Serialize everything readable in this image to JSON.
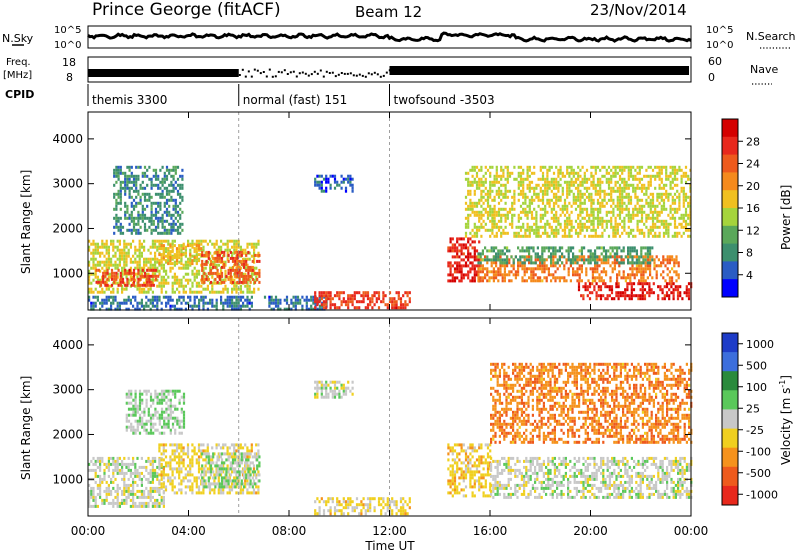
{
  "header": {
    "station": "Prince George (fitACF)",
    "beam": "Beam 12",
    "date": "23/Nov/2014"
  },
  "panels": {
    "nsky": {
      "left_label": "N.Sky",
      "right_label": "N.Search",
      "left_ticks": [
        "10^5",
        "10^0"
      ],
      "right_ticks": [
        "10^5",
        "10^0"
      ],
      "right_legend_style": "dotted"
    },
    "freq": {
      "left_label_1": "Freq.",
      "left_label_2": "[MHz]",
      "right_label": "Nave",
      "left_ticks": [
        "18",
        "8"
      ],
      "right_ticks": [
        "60",
        "0"
      ],
      "right_legend_style": "dotted"
    },
    "cpid": {
      "label": "CPID",
      "segments": [
        {
          "label": "themis 3300",
          "start_hour": 0,
          "end_hour": 6
        },
        {
          "label": "normal (fast) 151",
          "start_hour": 6,
          "end_hour": 12
        },
        {
          "label": "twofsound -3503",
          "start_hour": 12,
          "end_hour": 24
        }
      ]
    }
  },
  "chart_data": [
    {
      "type": "heatmap",
      "name": "power",
      "ylabel": "Slant Range [km]",
      "ylim": [
        180,
        4600
      ],
      "yticks": [
        "1000",
        "2000",
        "3000",
        "4000"
      ],
      "colorbar_label": "Power [dB]",
      "colorbar_ticks": [
        "4",
        "8",
        "12",
        "16",
        "20",
        "24",
        "28"
      ],
      "colorbar_colors": [
        "#0000ff",
        "#2a5cc4",
        "#3c8f6e",
        "#5aa85a",
        "#a5d43c",
        "#f0c020",
        "#f58a1c",
        "#ee5a1c",
        "#e8281c",
        "#d40000"
      ],
      "colorbar_range": [
        0,
        32
      ],
      "bands": [
        {
          "t0": 0.0,
          "t1": 6.8,
          "r0": 550,
          "r1": 1750,
          "val": 16
        },
        {
          "t0": 0.3,
          "t1": 2.8,
          "r0": 700,
          "r1": 1100,
          "val": 26
        },
        {
          "t0": 2.8,
          "t1": 4.5,
          "r0": 1200,
          "r1": 1650,
          "val": 18
        },
        {
          "t0": 4.5,
          "t1": 6.8,
          "r0": 800,
          "r1": 1500,
          "val": 24
        },
        {
          "t0": 1.0,
          "t1": 3.8,
          "r0": 1900,
          "r1": 3400,
          "val": 8
        },
        {
          "t0": 0.0,
          "t1": 6.5,
          "r0": 200,
          "r1": 500,
          "val": 6
        },
        {
          "t0": 7.0,
          "t1": 9.5,
          "r0": 200,
          "r1": 500,
          "val": 6
        },
        {
          "t0": 9.0,
          "t1": 12.8,
          "r0": 250,
          "r1": 600,
          "val": 26
        },
        {
          "t0": 9.0,
          "t1": 10.5,
          "r0": 2800,
          "r1": 3200,
          "val": 5
        },
        {
          "t0": 14.3,
          "t1": 15.6,
          "r0": 800,
          "r1": 1800,
          "val": 28
        },
        {
          "t0": 15.5,
          "t1": 23.5,
          "r0": 800,
          "r1": 1400,
          "val": 22
        },
        {
          "t0": 19.5,
          "t1": 24.0,
          "r0": 400,
          "r1": 800,
          "val": 28
        },
        {
          "t0": 15.5,
          "t1": 22.5,
          "r0": 1200,
          "r1": 1600,
          "val": 10
        },
        {
          "t0": 15.0,
          "t1": 24.0,
          "r0": 1800,
          "r1": 3400,
          "val": 16
        }
      ]
    },
    {
      "type": "heatmap",
      "name": "velocity",
      "ylabel": "Slant Range [km]",
      "ylim": [
        180,
        4600
      ],
      "yticks": [
        "1000",
        "2000",
        "3000",
        "4000"
      ],
      "colorbar_label": "Velocity [m s^-1]",
      "colorbar_ticks": [
        "1000",
        "500",
        "100",
        "25",
        "-25",
        "-100",
        "-500",
        "-1000"
      ],
      "colorbar_colors": [
        "#1e3cc8",
        "#3c6edc",
        "#2a8a3c",
        "#5ac85a",
        "#c8c8c8",
        "#f0d020",
        "#f5921c",
        "#ee5a1c",
        "#e8281c"
      ],
      "colorbar_range": [
        -1200,
        1200
      ],
      "bands": [
        {
          "t0": 0.0,
          "t1": 3.0,
          "r0": 400,
          "r1": 1500,
          "val": 0
        },
        {
          "t0": 2.8,
          "t1": 6.8,
          "r0": 700,
          "r1": 1800,
          "val": -200
        },
        {
          "t0": 4.5,
          "t1": 6.8,
          "r0": 800,
          "r1": 1600,
          "val": 150
        },
        {
          "t0": 1.5,
          "t1": 3.8,
          "r0": 2000,
          "r1": 3000,
          "val": 120
        },
        {
          "t0": 9.0,
          "t1": 12.8,
          "r0": 250,
          "r1": 600,
          "val": -200
        },
        {
          "t0": 9.0,
          "t1": 10.5,
          "r0": 2800,
          "r1": 3200,
          "val": 0
        },
        {
          "t0": 14.3,
          "t1": 16.0,
          "r0": 600,
          "r1": 1800,
          "val": -300
        },
        {
          "t0": 16.0,
          "t1": 24.0,
          "r0": 600,
          "r1": 1500,
          "val": 0
        },
        {
          "t0": 16.0,
          "t1": 24.0,
          "r0": 1800,
          "r1": 3600,
          "val": -600
        }
      ]
    }
  ],
  "xaxis": {
    "xlabel": "Time UT",
    "xlim": [
      0,
      24
    ],
    "ticks": [
      "00:00",
      "04:00",
      "08:00",
      "12:00",
      "16:00",
      "20:00",
      "00:00"
    ]
  }
}
